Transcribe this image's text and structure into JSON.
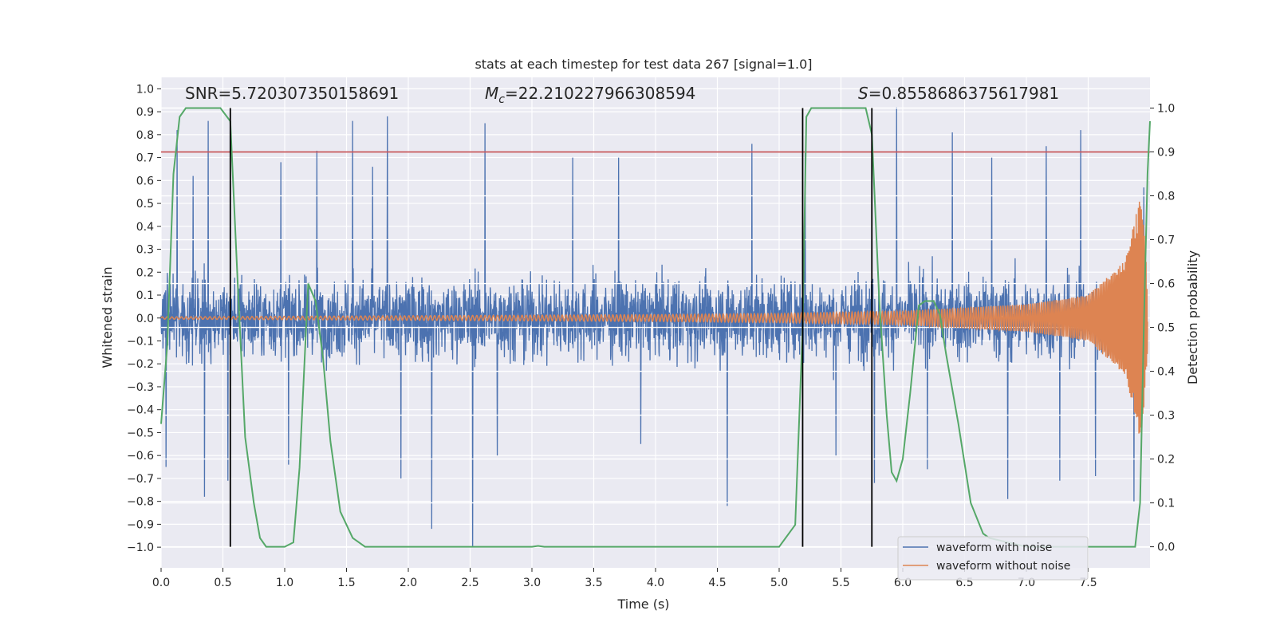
{
  "chart_data": {
    "type": "line",
    "title": "stats at each timestep for test data 267 [signal=1.0]",
    "xlabel": "Time (s)",
    "ylabel": "Whitened strain",
    "y2label": "Detection probability",
    "xlim": [
      0.0,
      8.0
    ],
    "ylim": [
      -1.09,
      1.05
    ],
    "y2lim": [
      -0.048,
      1.07
    ],
    "x_ticks": [
      "0.0",
      "0.5",
      "1.0",
      "1.5",
      "2.0",
      "2.5",
      "3.0",
      "3.5",
      "4.0",
      "4.5",
      "5.0",
      "5.5",
      "6.0",
      "6.5",
      "7.0",
      "7.5"
    ],
    "y_ticks": [
      "1.0",
      "0.9",
      "0.8",
      "0.7",
      "0.6",
      "0.5",
      "0.4",
      "0.3",
      "0.2",
      "0.1",
      "0.0",
      "−0.1",
      "−0.2",
      "−0.3",
      "−0.4",
      "−0.5",
      "−0.6",
      "−0.7",
      "−0.8",
      "−0.9",
      "−1.0"
    ],
    "y2_ticks": [
      "1.0",
      "0.9",
      "0.8",
      "0.7",
      "0.6",
      "0.5",
      "0.4",
      "0.3",
      "0.2",
      "0.1",
      "0.0"
    ],
    "annotations": {
      "snr": "SNR=5.720307350158691",
      "mc_symbol": "M",
      "mc_sub": "c",
      "mc_value": "=22.210227966308594",
      "s_symbol": "S",
      "s_value": "=0.8558686375617981"
    },
    "threshold": {
      "name": "detection threshold",
      "value": 0.9
    },
    "vertical_markers": [
      0.56,
      5.19,
      5.75
    ],
    "series": [
      {
        "name": "waveform with noise",
        "color": "#4c72b0",
        "axis": "left",
        "note": "dense whitened noise, typical amplitude ±0.35, peaks to ±0.9",
        "spikes": [
          [
            0.04,
            -0.65
          ],
          [
            0.13,
            0.82
          ],
          [
            0.26,
            0.62
          ],
          [
            0.35,
            -0.78
          ],
          [
            0.38,
            0.86
          ],
          [
            0.54,
            -0.71
          ],
          [
            0.97,
            0.68
          ],
          [
            1.03,
            -0.64
          ],
          [
            1.26,
            0.73
          ],
          [
            1.55,
            0.86
          ],
          [
            1.71,
            0.66
          ],
          [
            1.83,
            0.88
          ],
          [
            1.94,
            -0.7
          ],
          [
            2.19,
            -0.92
          ],
          [
            2.52,
            -1.0
          ],
          [
            2.62,
            0.85
          ],
          [
            2.72,
            -0.6
          ],
          [
            3.33,
            0.7
          ],
          [
            3.7,
            0.7
          ],
          [
            3.88,
            -0.55
          ],
          [
            4.58,
            -0.82
          ],
          [
            4.78,
            0.76
          ],
          [
            5.21,
            0.72
          ],
          [
            5.46,
            -0.6
          ],
          [
            5.77,
            -0.72
          ],
          [
            5.95,
            0.92
          ],
          [
            6.2,
            -0.66
          ],
          [
            6.4,
            0.81
          ],
          [
            6.72,
            0.7
          ],
          [
            6.85,
            -0.79
          ],
          [
            7.16,
            0.75
          ],
          [
            7.27,
            -0.71
          ],
          [
            7.44,
            0.82
          ],
          [
            7.56,
            -0.69
          ],
          [
            7.87,
            -0.8
          ],
          [
            7.95,
            0.57
          ]
        ]
      },
      {
        "name": "waveform without noise",
        "color": "#dd8452",
        "axis": "left",
        "note": "chirp: amplitude grows from ~0.005 to ~0.55 at t≈7.93 s",
        "x": [
          0.0,
          2.0,
          4.0,
          5.0,
          6.0,
          7.0,
          7.5,
          7.8,
          7.93,
          8.0
        ],
        "amplitude": [
          0.005,
          0.01,
          0.015,
          0.02,
          0.03,
          0.06,
          0.1,
          0.25,
          0.55,
          0.0
        ]
      },
      {
        "name": "detection probability",
        "color": "#55a868",
        "axis": "right",
        "x": [
          0.0,
          0.05,
          0.1,
          0.15,
          0.2,
          0.3,
          0.4,
          0.48,
          0.56,
          0.62,
          0.68,
          0.75,
          0.8,
          0.85,
          0.9,
          1.0,
          1.07,
          1.12,
          1.19,
          1.25,
          1.31,
          1.37,
          1.45,
          1.55,
          1.6,
          1.65,
          1.7,
          2.0,
          3.0,
          3.05,
          3.1,
          4.0,
          5.0,
          5.13,
          5.19,
          5.22,
          5.26,
          5.4,
          5.6,
          5.7,
          5.75,
          5.81,
          5.87,
          5.91,
          5.95,
          6.0,
          6.06,
          6.13,
          6.18,
          6.25,
          6.3,
          6.35,
          6.45,
          6.55,
          6.65,
          6.7,
          7.0,
          7.5,
          7.88,
          7.92,
          7.95,
          7.98,
          8.0
        ],
        "values": [
          0.28,
          0.46,
          0.85,
          0.98,
          1.0,
          1.0,
          1.0,
          1.0,
          0.97,
          0.6,
          0.25,
          0.1,
          0.02,
          0.0,
          0.0,
          0.0,
          0.01,
          0.18,
          0.6,
          0.56,
          0.43,
          0.24,
          0.08,
          0.02,
          0.01,
          0.0,
          0.0,
          0.0,
          0.0,
          0.002,
          0.0,
          0.0,
          0.0,
          0.05,
          0.5,
          0.98,
          1.0,
          1.0,
          1.0,
          1.0,
          0.94,
          0.56,
          0.3,
          0.17,
          0.15,
          0.2,
          0.35,
          0.55,
          0.56,
          0.56,
          0.53,
          0.44,
          0.28,
          0.1,
          0.03,
          0.02,
          0.0,
          0.0,
          0.0,
          0.1,
          0.5,
          0.85,
          0.97
        ]
      }
    ],
    "legend": {
      "position": "lower right",
      "entries": [
        {
          "label": "waveform with noise",
          "color": "#4c72b0"
        },
        {
          "label": "waveform without noise",
          "color": "#dd8452"
        }
      ]
    },
    "colors": {
      "background": "#eaeaf2",
      "grid": "#ffffff",
      "threshold": "#c44e52",
      "marker": "#000000",
      "text": "#262626"
    }
  }
}
